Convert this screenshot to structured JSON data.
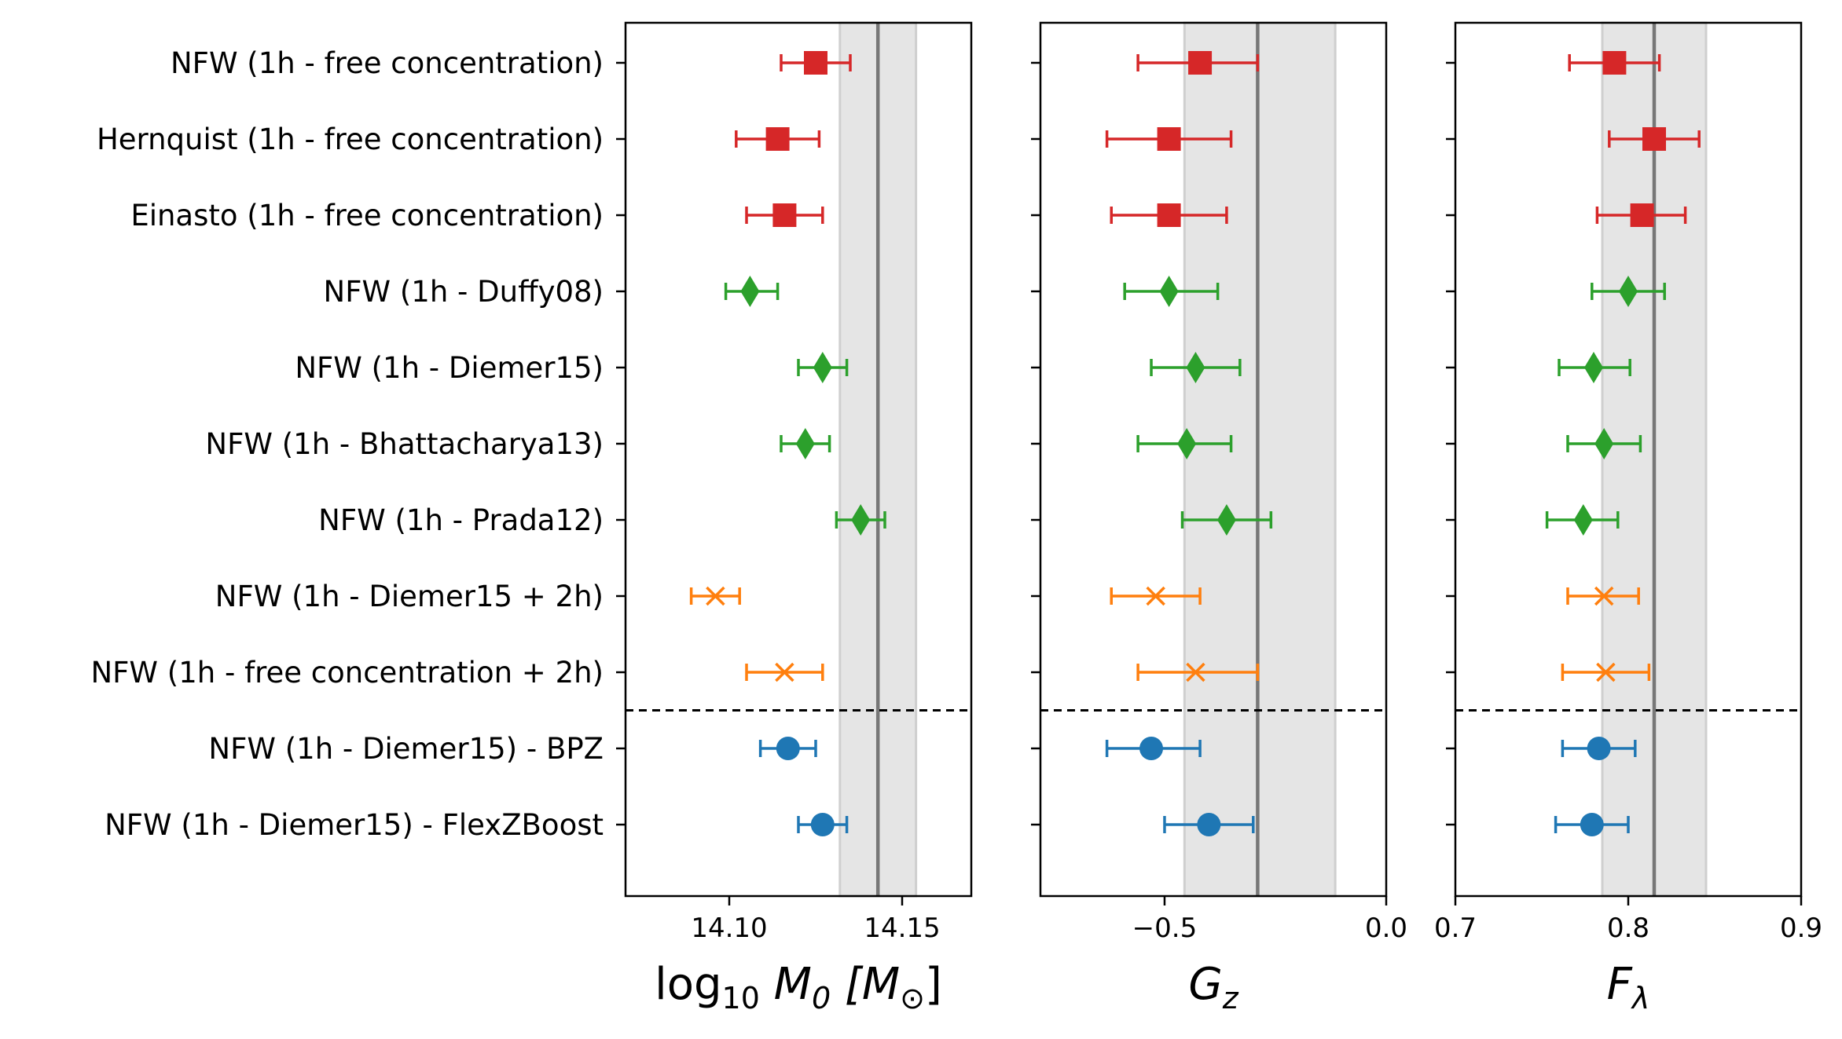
{
  "chart_data": {
    "type": "errorbar-forest",
    "rows": [
      "NFW (1h - free concentration)",
      "Hernquist (1h - free concentration)",
      "Einasto (1h - free concentration)",
      "NFW (1h - Duffy08)",
      "NFW (1h - Diemer15)",
      "NFW (1h - Bhattacharya13)",
      "NFW (1h - Prada12)",
      "NFW (1h - Diemer15 + 2h)",
      "NFW (1h - free concentration + 2h)",
      "NFW (1h - Diemer15) - BPZ",
      "NFW (1h - Diemer15) - FlexZBoost"
    ],
    "separator_after_row": 8,
    "groups": [
      {
        "rows": [
          0,
          1,
          2
        ],
        "marker": "square",
        "color": "#d62728"
      },
      {
        "rows": [
          3,
          4,
          5,
          6
        ],
        "marker": "diamond",
        "color": "#2ca02c"
      },
      {
        "rows": [
          7,
          8
        ],
        "marker": "x",
        "color": "#ff7f0e"
      },
      {
        "rows": [
          9,
          10
        ],
        "marker": "circle",
        "color": "#1f77b4"
      }
    ],
    "panels": [
      {
        "xlabel_parts": {
          "pre": "log",
          "sub": "10",
          "mid": " M",
          "sub2": "0",
          "post": " [M",
          "sub3": "⊙",
          "end": "]"
        },
        "xlim": [
          14.07,
          14.17
        ],
        "xticks": [
          14.1,
          14.15
        ],
        "xtick_labels": [
          "14.10",
          "14.15"
        ],
        "reference": 14.143,
        "band": [
          14.132,
          14.154
        ],
        "values": [
          {
            "v": 14.125,
            "lo": 14.115,
            "hi": 14.135
          },
          {
            "v": 14.114,
            "lo": 14.102,
            "hi": 14.126
          },
          {
            "v": 14.116,
            "lo": 14.105,
            "hi": 14.127
          },
          {
            "v": 14.106,
            "lo": 14.099,
            "hi": 14.114
          },
          {
            "v": 14.127,
            "lo": 14.12,
            "hi": 14.134
          },
          {
            "v": 14.122,
            "lo": 14.115,
            "hi": 14.129
          },
          {
            "v": 14.138,
            "lo": 14.131,
            "hi": 14.145
          },
          {
            "v": 14.096,
            "lo": 14.089,
            "hi": 14.103
          },
          {
            "v": 14.116,
            "lo": 14.105,
            "hi": 14.127
          },
          {
            "v": 14.117,
            "lo": 14.109,
            "hi": 14.125
          },
          {
            "v": 14.127,
            "lo": 14.12,
            "hi": 14.134
          }
        ]
      },
      {
        "xlabel_parts": {
          "pre": "",
          "sub": "",
          "mid": "G",
          "sub2": "z",
          "post": "",
          "sub3": "",
          "end": ""
        },
        "xlim": [
          -0.78,
          0.0
        ],
        "xticks": [
          -0.5,
          0.0
        ],
        "xtick_labels": [
          "−0.5",
          "0.0"
        ],
        "reference": -0.29,
        "band": [
          -0.455,
          -0.115
        ],
        "values": [
          {
            "v": -0.42,
            "lo": -0.56,
            "hi": -0.29
          },
          {
            "v": -0.49,
            "lo": -0.63,
            "hi": -0.35
          },
          {
            "v": -0.49,
            "lo": -0.62,
            "hi": -0.36
          },
          {
            "v": -0.49,
            "lo": -0.59,
            "hi": -0.38
          },
          {
            "v": -0.43,
            "lo": -0.53,
            "hi": -0.33
          },
          {
            "v": -0.45,
            "lo": -0.56,
            "hi": -0.35
          },
          {
            "v": -0.36,
            "lo": -0.46,
            "hi": -0.26
          },
          {
            "v": -0.52,
            "lo": -0.62,
            "hi": -0.42
          },
          {
            "v": -0.43,
            "lo": -0.56,
            "hi": -0.29
          },
          {
            "v": -0.53,
            "lo": -0.63,
            "hi": -0.42
          },
          {
            "v": -0.4,
            "lo": -0.5,
            "hi": -0.3
          }
        ]
      },
      {
        "xlabel_parts": {
          "pre": "",
          "sub": "",
          "mid": "F",
          "sub2": "λ",
          "post": "",
          "sub3": "",
          "end": ""
        },
        "xlim": [
          0.7,
          0.9
        ],
        "xticks": [
          0.7,
          0.8,
          0.9
        ],
        "xtick_labels": [
          "0.7",
          "0.8",
          "0.9"
        ],
        "reference": 0.815,
        "band": [
          0.785,
          0.845
        ],
        "values": [
          {
            "v": 0.792,
            "lo": 0.766,
            "hi": 0.818
          },
          {
            "v": 0.815,
            "lo": 0.789,
            "hi": 0.841
          },
          {
            "v": 0.808,
            "lo": 0.782,
            "hi": 0.833
          },
          {
            "v": 0.8,
            "lo": 0.779,
            "hi": 0.821
          },
          {
            "v": 0.78,
            "lo": 0.76,
            "hi": 0.801
          },
          {
            "v": 0.786,
            "lo": 0.765,
            "hi": 0.807
          },
          {
            "v": 0.774,
            "lo": 0.753,
            "hi": 0.794
          },
          {
            "v": 0.786,
            "lo": 0.765,
            "hi": 0.806
          },
          {
            "v": 0.787,
            "lo": 0.762,
            "hi": 0.812
          },
          {
            "v": 0.783,
            "lo": 0.762,
            "hi": 0.804
          },
          {
            "v": 0.779,
            "lo": 0.758,
            "hi": 0.8
          }
        ]
      }
    ]
  }
}
